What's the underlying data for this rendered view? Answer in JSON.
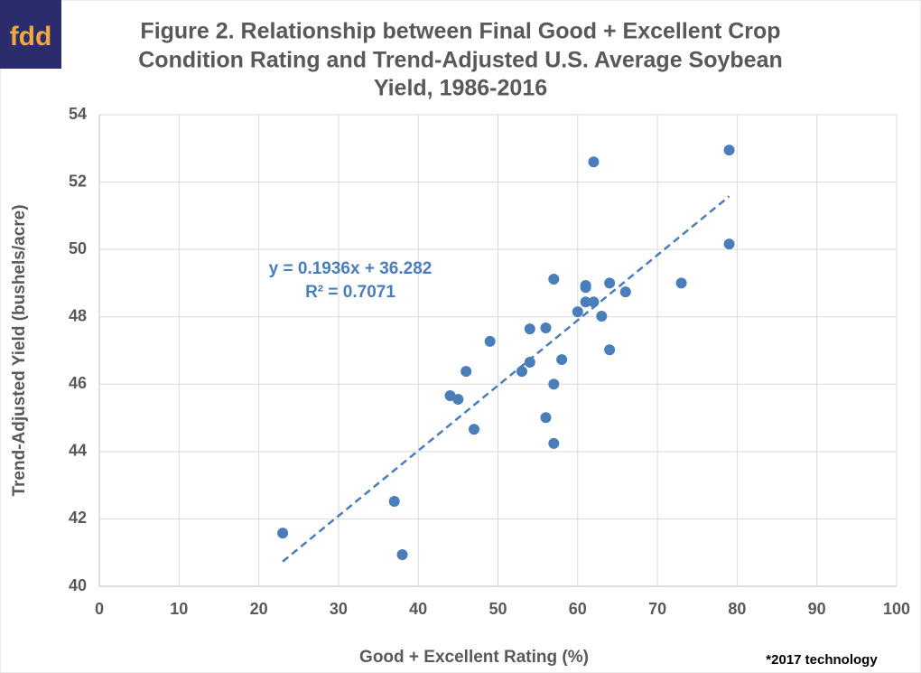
{
  "logo": "fdd",
  "chart_data": {
    "type": "scatter",
    "title": [
      "Figure 2. Relationship between Final Good + Excellent Crop",
      "Condition Rating and Trend-Adjusted U.S. Average Soybean",
      "Yield, 1986-2016"
    ],
    "xlabel": "Good + Excellent Rating (%)",
    "ylabel": "Trend-Adjusted Yield (bushels/acre)",
    "note": "*2017 technology",
    "color": "#4a7ebb",
    "grid": true,
    "xlim": [
      0,
      100
    ],
    "xticks": [
      0,
      10,
      20,
      30,
      40,
      50,
      60,
      70,
      80,
      90,
      100
    ],
    "ylim": [
      40,
      54
    ],
    "yticks": [
      40,
      42,
      44,
      46,
      48,
      50,
      52,
      54
    ],
    "x": [
      23,
      37,
      38,
      44,
      45,
      46,
      47,
      49,
      53,
      54,
      54,
      56,
      56,
      57,
      57,
      57,
      58,
      60,
      61,
      61,
      61,
      62,
      62,
      63,
      64,
      64,
      66,
      73,
      79,
      79
    ],
    "values": [
      41.58,
      42.52,
      40.94,
      45.66,
      45.55,
      46.38,
      44.66,
      47.27,
      46.38,
      46.65,
      47.64,
      47.67,
      45.01,
      49.12,
      46.0,
      44.24,
      46.73,
      48.15,
      48.93,
      48.87,
      48.44,
      48.44,
      52.6,
      48.02,
      49.0,
      47.02,
      48.74,
      49.0,
      52.95,
      50.16
    ],
    "trendline": {
      "equation": "y = 0.1936x + 36.282",
      "r2": "R² = 0.7071",
      "slope": 0.1936,
      "intercept": 36.282,
      "x": [
        23,
        79
      ],
      "color": "#4a7ebb"
    }
  }
}
